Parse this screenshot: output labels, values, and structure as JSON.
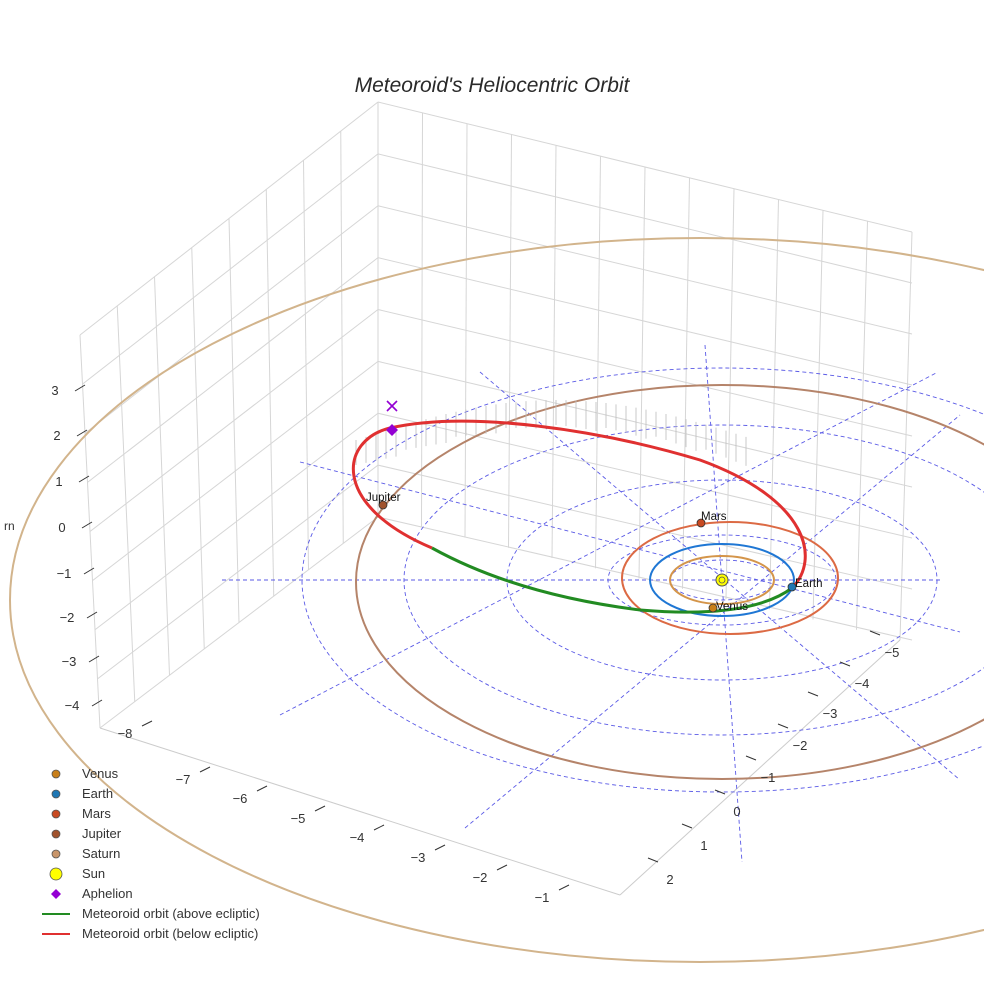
{
  "chart_data": {
    "type": "3d-line",
    "title": "Meteoroid's Heliocentric Orbit",
    "zlabel_partial": "rn",
    "x_ticks": [
      "−8",
      "−7",
      "−6",
      "−5",
      "−4",
      "−3",
      "−2",
      "−1"
    ],
    "y_ticks": [
      "−5",
      "−4",
      "−3",
      "−2",
      "−1",
      "0",
      "1",
      "2"
    ],
    "z_ticks": [
      "3",
      "2",
      "1",
      "0",
      "−1",
      "−2",
      "−3",
      "−4"
    ],
    "series": [
      {
        "name": "Venus",
        "kind": "marker",
        "color": "#c87f1a",
        "label": "Venus"
      },
      {
        "name": "Earth",
        "kind": "marker",
        "color": "#1f77b4",
        "label": "Earth"
      },
      {
        "name": "Mars",
        "kind": "marker",
        "color": "#c84a22",
        "label": "Mars"
      },
      {
        "name": "Jupiter",
        "kind": "marker",
        "color": "#a0522d",
        "label": "Jupiter"
      },
      {
        "name": "Saturn",
        "kind": "marker",
        "color": "#c8956a",
        "label": ""
      },
      {
        "name": "Sun",
        "kind": "marker",
        "color": "#ffff00",
        "label": ""
      },
      {
        "name": "Aphelion",
        "kind": "diamond",
        "color": "#9400d3",
        "label": ""
      },
      {
        "name": "Meteoroid orbit (above ecliptic)",
        "kind": "line",
        "color": "#228b22"
      },
      {
        "name": "Meteoroid orbit (below ecliptic)",
        "kind": "line",
        "color": "#e03030"
      }
    ],
    "orbit_colors": {
      "venus": "#d4954a",
      "earth": "#1f77d4",
      "mars": "#dc6a44",
      "jupiter": "#b5846a",
      "saturn": "#d2b48c",
      "grid": "#5a5ae6"
    },
    "legend_position": "bottom-left",
    "grid": true
  }
}
